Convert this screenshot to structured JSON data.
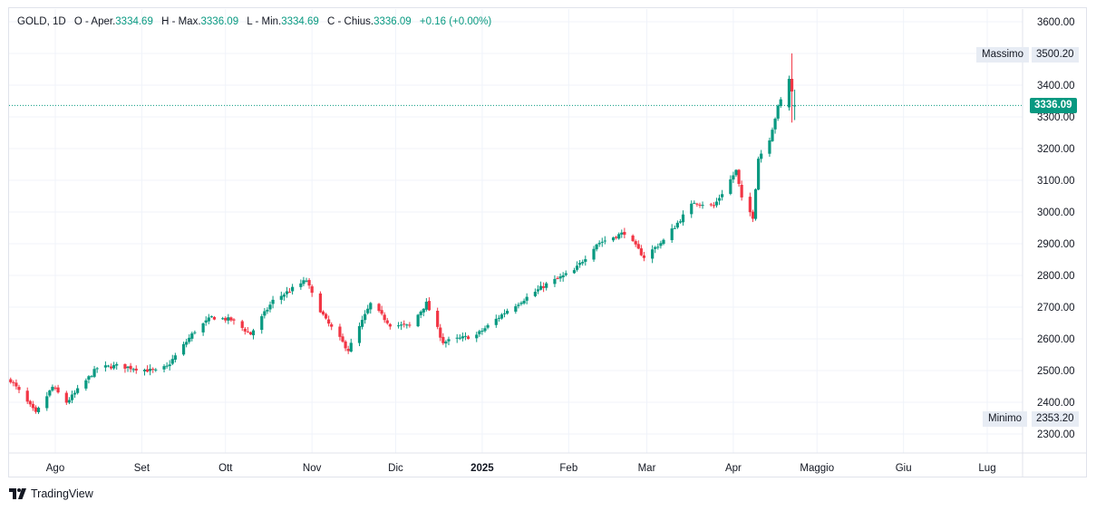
{
  "legend": {
    "symbol": "GOLD, 1D",
    "open_label": "O - Aper.",
    "open": "3334.69",
    "high_label": "H - Max.",
    "high": "3336.09",
    "low_label": "L - Min.",
    "low": "3334.69",
    "close_label": "C - Chius.",
    "close": "3336.09",
    "change": "+0.16 (+0.00%)"
  },
  "high_label": "Massimo",
  "high_value": "3500.20",
  "low_label": "Minimo",
  "low_value": "2353.20",
  "last_price": "3336.09",
  "brand": "TradingView",
  "colors": {
    "up": "#089981",
    "down": "#f23645",
    "grid": "#f0f3fa",
    "axis_text": "#131722"
  },
  "chart_data": {
    "type": "candlestick",
    "y_ticks": [
      "2300.00",
      "2400.00",
      "2500.00",
      "2600.00",
      "2700.00",
      "2800.00",
      "2900.00",
      "3000.00",
      "3100.00",
      "3200.00",
      "3300.00",
      "3400.00",
      "3500.00",
      "3600.00"
    ],
    "ylim": [
      2235,
      3640
    ],
    "x_labels": [
      "Ago",
      "Set",
      "Ott",
      "Nov",
      "Dic",
      "2025",
      "Feb",
      "Mar",
      "Apr",
      "Maggio",
      "Giu",
      "Lug"
    ],
    "x_label_dates": [
      "2024-08-01",
      "2024-09-01",
      "2024-10-01",
      "2024-11-01",
      "2024-12-01",
      "2025-01-01",
      "2025-02-01",
      "2025-03-01",
      "2025-04-01",
      "2025-05-01",
      "2025-06-01",
      "2025-07-01"
    ],
    "bold_x_label": "2025",
    "last_price": 3336.09,
    "session_high": 3500.2,
    "session_low": 2353.2,
    "anchors": [
      [
        "2024-07-16",
        2470
      ],
      [
        "2024-07-25",
        2364
      ],
      [
        "2024-07-31",
        2448
      ],
      [
        "2024-08-05",
        2400
      ],
      [
        "2024-08-08",
        2428
      ],
      [
        "2024-08-16",
        2508
      ],
      [
        "2024-08-23",
        2515
      ],
      [
        "2024-09-06",
        2498
      ],
      [
        "2024-09-10",
        2512
      ],
      [
        "2024-09-20",
        2625
      ],
      [
        "2024-09-26",
        2668
      ],
      [
        "2024-10-03",
        2660
      ],
      [
        "2024-10-10",
        2615
      ],
      [
        "2024-10-18",
        2720
      ],
      [
        "2024-10-30",
        2785
      ],
      [
        "2024-11-01",
        2740
      ],
      [
        "2024-11-06",
        2658
      ],
      [
        "2024-11-14",
        2565
      ],
      [
        "2024-11-22",
        2710
      ],
      [
        "2024-11-29",
        2645
      ],
      [
        "2024-12-06",
        2640
      ],
      [
        "2024-12-12",
        2712
      ],
      [
        "2024-12-18",
        2590
      ],
      [
        "2024-12-30",
        2612
      ],
      [
        "2025-01-10",
        2690
      ],
      [
        "2025-01-24",
        2772
      ],
      [
        "2025-02-03",
        2815
      ],
      [
        "2025-02-11",
        2900
      ],
      [
        "2025-02-21",
        2935
      ],
      [
        "2025-02-28",
        2858
      ],
      [
        "2025-03-07",
        2910
      ],
      [
        "2025-03-18",
        3032
      ],
      [
        "2025-03-25",
        3018
      ],
      [
        "2025-04-02",
        3130
      ],
      [
        "2025-04-04",
        3040
      ],
      [
        "2025-04-08",
        2985
      ],
      [
        "2025-04-10",
        3170
      ],
      [
        "2025-04-14",
        3232
      ],
      [
        "2025-04-17",
        3330
      ],
      [
        "2025-04-21",
        3420
      ],
      [
        "2025-04-22",
        3330
      ],
      [
        "2025-04-23",
        3336.09
      ]
    ]
  }
}
